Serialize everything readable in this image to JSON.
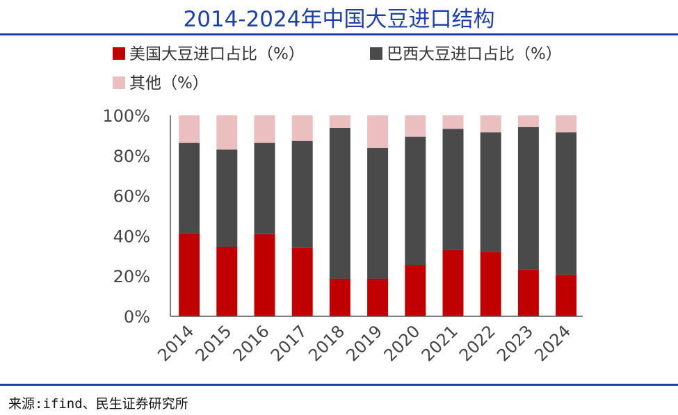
{
  "chart_data": {
    "type": "bar",
    "stacked": true,
    "title": "2014-2024年中国大豆进口结构",
    "categories": [
      "2014",
      "2015",
      "2016",
      "2017",
      "2018",
      "2019",
      "2020",
      "2021",
      "2022",
      "2023",
      "2024"
    ],
    "series": [
      {
        "name": "美国大豆进口占比（%）",
        "color": "#c00000",
        "values": [
          41.3,
          34.6,
          40.9,
          34.0,
          18.7,
          18.7,
          25.6,
          32.9,
          32.1,
          23.3,
          20.7
        ]
      },
      {
        "name": "巴西大豆进口占比（%）",
        "color": "#4a4a4a",
        "values": [
          45.0,
          48.4,
          45.4,
          53.3,
          75.1,
          65.1,
          63.8,
          60.4,
          59.5,
          70.9,
          70.9
        ]
      },
      {
        "name": "其他（%）",
        "color": "#ebbfbf",
        "values": [
          13.7,
          17.0,
          13.7,
          12.7,
          6.2,
          16.2,
          10.6,
          6.7,
          8.4,
          5.8,
          8.4
        ]
      }
    ],
    "yticks": [
      "0%",
      "20%",
      "40%",
      "60%",
      "80%",
      "100%"
    ],
    "ylim": [
      0,
      100
    ],
    "legend": "top",
    "grid": false
  },
  "source": "来源:ifind、民生证券研究所"
}
